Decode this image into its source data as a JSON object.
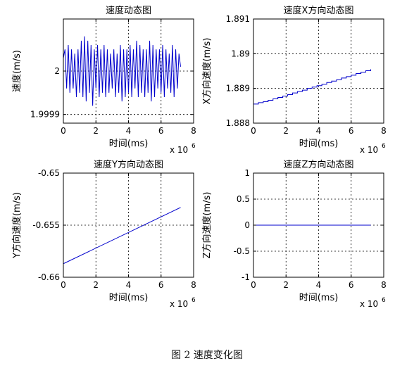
{
  "figure": {
    "caption": "图 2  速度变化图"
  },
  "chart_data": [
    {
      "type": "line",
      "title": "速度动态图",
      "xlabel": "时间(ms)",
      "ylabel": "速度(m/s)",
      "x_multiplier": "x 10",
      "x_exponent": "6",
      "xlim": [
        0,
        8
      ],
      "ylim": [
        1.99988,
        2.00012
      ],
      "xticks": [
        0,
        2,
        4,
        6,
        8
      ],
      "yticks": [
        {
          "value": 1.9999,
          "label": "1.9999"
        },
        {
          "value": 2.0,
          "label": "2"
        }
      ],
      "grid": true,
      "series_color": "#0000cc",
      "series": [
        {
          "x": [
            0.0,
            0.1,
            0.2,
            0.3,
            0.4,
            0.5,
            0.6,
            0.7,
            0.8,
            0.9,
            1.0,
            1.1,
            1.2,
            1.3,
            1.4,
            1.5,
            1.6,
            1.7,
            1.8,
            1.9,
            2.0,
            2.1,
            2.2,
            2.3,
            2.4,
            2.5,
            2.6,
            2.7,
            2.8,
            2.9,
            3.0,
            3.1,
            3.2,
            3.3,
            3.4,
            3.5,
            3.6,
            3.7,
            3.8,
            3.9,
            4.0,
            4.1,
            4.2,
            4.3,
            4.4,
            4.5,
            4.6,
            4.7,
            4.8,
            4.9,
            5.0,
            5.1,
            5.2,
            5.3,
            5.4,
            5.5,
            5.6,
            5.7,
            5.8,
            5.9,
            6.0,
            6.1,
            6.2,
            6.3,
            6.4,
            6.5,
            6.6,
            6.7,
            6.8,
            6.9,
            7.0,
            7.1,
            7.2
          ],
          "y": [
            2.00003,
            2.00005,
            1.99996,
            2.00006,
            1.99995,
            2.00005,
            1.99996,
            2.00004,
            1.99994,
            2.00005,
            1.99995,
            2.00007,
            1.99994,
            2.00008,
            1.99993,
            2.00007,
            1.99995,
            2.00006,
            1.99992,
            2.00005,
            1.99996,
            2.00006,
            1.99994,
            2.00005,
            1.99995,
            2.00006,
            1.99994,
            2.00005,
            1.99995,
            2.00004,
            1.99996,
            2.00005,
            1.99994,
            2.00004,
            1.99995,
            2.00006,
            1.99993,
            2.00005,
            1.99994,
            2.00005,
            1.99995,
            2.00006,
            1.99994,
            2.00005,
            1.99996,
            2.00007,
            1.99994,
            2.00006,
            1.99995,
            2.00005,
            1.99994,
            2.00005,
            1.99995,
            2.00007,
            1.99993,
            2.00006,
            1.99994,
            2.00005,
            1.99996,
            2.00005,
            1.99995,
            2.00006,
            1.99994,
            2.00005,
            1.99996,
            2.00004,
            1.99995,
            2.00006,
            1.99994,
            2.00005,
            1.99996,
            2.00004,
            2.00001
          ]
        }
      ]
    },
    {
      "type": "line",
      "title": "速度X方向动态图",
      "xlabel": "时间(ms)",
      "ylabel": "X方向速度(m/s)",
      "x_multiplier": "x 10",
      "x_exponent": "6",
      "xlim": [
        0,
        8
      ],
      "ylim": [
        1.888,
        1.891
      ],
      "xticks": [
        0,
        2,
        4,
        6,
        8
      ],
      "yticks": [
        {
          "value": 1.888,
          "label": "1.888"
        },
        {
          "value": 1.889,
          "label": "1.889"
        },
        {
          "value": 1.89,
          "label": "1.89"
        },
        {
          "value": 1.891,
          "label": "1.891"
        }
      ],
      "grid": true,
      "series_color": "#0000cc",
      "step": true,
      "series": [
        {
          "x": [
            0.0,
            0.3,
            0.6,
            0.9,
            1.2,
            1.5,
            1.8,
            2.1,
            2.4,
            2.7,
            3.0,
            3.3,
            3.6,
            3.9,
            4.2,
            4.5,
            4.8,
            5.1,
            5.4,
            5.7,
            6.0,
            6.3,
            6.6,
            6.9,
            7.2
          ],
          "y": [
            1.88855,
            1.88859,
            1.88862,
            1.88866,
            1.8887,
            1.88874,
            1.88878,
            1.88882,
            1.88887,
            1.88891,
            1.88895,
            1.889,
            1.88904,
            1.88908,
            1.88912,
            1.88917,
            1.88921,
            1.88925,
            1.8893,
            1.88934,
            1.88938,
            1.88943,
            1.88947,
            1.88951,
            1.88955
          ]
        }
      ]
    },
    {
      "type": "line",
      "title": "速度Y方向动态图",
      "xlabel": "时间(ms)",
      "ylabel": "Y方向速度(m/s)",
      "x_multiplier": "x 10",
      "x_exponent": "6",
      "xlim": [
        0,
        8
      ],
      "ylim": [
        -0.66,
        -0.65
      ],
      "xticks": [
        0,
        2,
        4,
        6,
        8
      ],
      "yticks": [
        {
          "value": -0.66,
          "label": "-0.66"
        },
        {
          "value": -0.655,
          "label": "-0.655"
        },
        {
          "value": -0.65,
          "label": "-0.65"
        }
      ],
      "grid": true,
      "series_color": "#0000cc",
      "series": [
        {
          "x": [
            0.0,
            7.2
          ],
          "y": [
            -0.6587,
            -0.6533
          ]
        }
      ]
    },
    {
      "type": "line",
      "title": "速度Z方向动态图",
      "xlabel": "时间(ms)",
      "ylabel": "Z方向速度(m/s)",
      "x_multiplier": "x 10",
      "x_exponent": "6",
      "xlim": [
        0,
        8
      ],
      "ylim": [
        -1,
        1
      ],
      "xticks": [
        0,
        2,
        4,
        6,
        8
      ],
      "yticks": [
        {
          "value": -1,
          "label": "-1"
        },
        {
          "value": -0.5,
          "label": "-0.5"
        },
        {
          "value": 0,
          "label": "0"
        },
        {
          "value": 0.5,
          "label": "0.5"
        },
        {
          "value": 1,
          "label": "1"
        }
      ],
      "grid": true,
      "series_color": "#0000cc",
      "series": [
        {
          "x": [
            0.0,
            7.2
          ],
          "y": [
            0.0,
            0.0
          ]
        }
      ]
    }
  ]
}
